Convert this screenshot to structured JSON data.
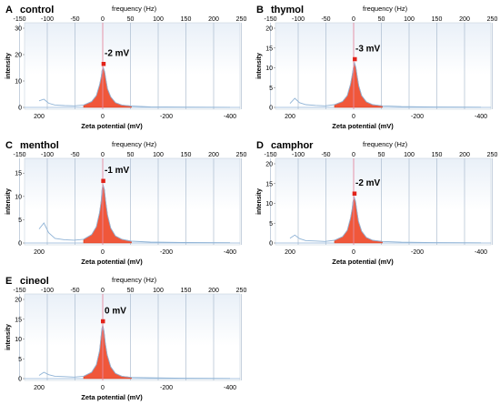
{
  "colors": {
    "peak_fill": "#f0573a",
    "peak_edge": "#d63a1d",
    "marker": "#e2231a",
    "zero_line": "#e58aa0",
    "grid": "#9fb3c8",
    "baseline": "#8fb3d6",
    "plot_bg_top": "#e9f0f8",
    "axis": "#7f7f7f",
    "text": "#000000"
  },
  "common": {
    "top_axis_title": "frequency (Hz)",
    "top_ticks": [
      "-150",
      "-100",
      "-50",
      "0",
      "50",
      "100",
      "150",
      "200",
      "250"
    ],
    "x_label": "Zeta potential (mV)",
    "x_ticks": [
      "200",
      "0",
      "-200",
      "-400"
    ],
    "y_label": "intensity"
  },
  "chart_data": [
    {
      "type": "area",
      "panel": "A",
      "title": "control",
      "annotation": "-2 mV",
      "peak_mV": -2,
      "y_ticks": [
        0,
        10,
        20,
        30
      ],
      "ylim": [
        0,
        30
      ],
      "xlim_mV": [
        250,
        -420
      ],
      "series": [
        {
          "x_mV": [
            200,
            185,
            170,
            150,
            120,
            90,
            60,
            35,
            20,
            10,
            5,
            2,
            -2,
            -6,
            -10,
            -15,
            -25,
            -40,
            -60,
            -90,
            -150,
            -250,
            -400
          ],
          "intensity": [
            2.5,
            3.1,
            1.6,
            0.9,
            0.7,
            0.6,
            0.9,
            2.2,
            4.5,
            8.5,
            11.5,
            14.0,
            15.0,
            13.5,
            10.5,
            7.0,
            4.0,
            1.8,
            0.9,
            0.5,
            0.2,
            0.1,
            0.05
          ]
        }
      ]
    },
    {
      "type": "area",
      "panel": "B",
      "title": "thymol",
      "annotation": "-3 mV",
      "peak_mV": -3,
      "y_ticks": [
        0,
        5,
        10,
        15,
        20
      ],
      "ylim": [
        0,
        20
      ],
      "xlim_mV": [
        250,
        -420
      ],
      "series": [
        {
          "x_mV": [
            200,
            185,
            170,
            150,
            120,
            90,
            60,
            35,
            20,
            10,
            5,
            1,
            -3,
            -7,
            -11,
            -16,
            -25,
            -40,
            -60,
            -90,
            -150,
            -250,
            -400
          ],
          "intensity": [
            1.0,
            2.3,
            1.2,
            0.7,
            0.5,
            0.4,
            0.7,
            1.5,
            3.0,
            5.8,
            8.0,
            10.0,
            11.2,
            10.0,
            8.0,
            5.5,
            3.0,
            1.4,
            0.7,
            0.4,
            0.2,
            0.1,
            0.05
          ]
        }
      ]
    },
    {
      "type": "area",
      "panel": "C",
      "title": "menthol",
      "annotation": "-1 mV",
      "peak_mV": -1,
      "y_ticks": [
        0,
        5,
        10,
        15
      ],
      "ylim": [
        0,
        17
      ],
      "xlim_mV": [
        250,
        -420
      ],
      "series": [
        {
          "x_mV": [
            200,
            185,
            170,
            150,
            120,
            90,
            60,
            35,
            20,
            10,
            5,
            2,
            -1,
            -5,
            -9,
            -15,
            -25,
            -40,
            -60,
            -90,
            -150,
            -250,
            -400
          ],
          "intensity": [
            3.0,
            4.3,
            2.2,
            1.0,
            0.7,
            0.6,
            0.8,
            1.8,
            3.5,
            6.5,
            9.0,
            11.5,
            12.5,
            11.5,
            9.0,
            6.0,
            3.2,
            1.5,
            0.8,
            0.4,
            0.2,
            0.1,
            0.05
          ]
        }
      ]
    },
    {
      "type": "area",
      "panel": "D",
      "title": "camphor",
      "annotation": "-2 mV",
      "peak_mV": -2,
      "y_ticks": [
        0,
        5,
        10,
        15,
        20
      ],
      "ylim": [
        0,
        20
      ],
      "xlim_mV": [
        250,
        -420
      ],
      "series": [
        {
          "x_mV": [
            200,
            185,
            170,
            150,
            120,
            90,
            60,
            35,
            20,
            10,
            5,
            2,
            -2,
            -6,
            -10,
            -15,
            -25,
            -40,
            -60,
            -90,
            -150,
            -250,
            -400
          ],
          "intensity": [
            1.2,
            2.0,
            1.1,
            0.6,
            0.5,
            0.4,
            0.7,
            1.6,
            3.2,
            6.2,
            8.5,
            10.5,
            11.5,
            10.5,
            8.2,
            5.5,
            3.0,
            1.4,
            0.7,
            0.4,
            0.2,
            0.1,
            0.05
          ]
        }
      ]
    },
    {
      "type": "area",
      "panel": "E",
      "title": "cineol",
      "annotation": "0 mV",
      "peak_mV": 0,
      "y_ticks": [
        0,
        5,
        10,
        15,
        20
      ],
      "ylim": [
        0,
        20
      ],
      "xlim_mV": [
        250,
        -420
      ],
      "series": [
        {
          "x_mV": [
            200,
            185,
            170,
            150,
            120,
            90,
            60,
            35,
            20,
            10,
            6,
            3,
            0,
            -4,
            -8,
            -14,
            -25,
            -40,
            -60,
            -90,
            -150,
            -250,
            -400
          ],
          "intensity": [
            0.8,
            1.6,
            1.0,
            0.6,
            0.5,
            0.4,
            0.6,
            1.6,
            3.5,
            7.0,
            10.0,
            12.5,
            13.5,
            12.0,
            9.0,
            6.0,
            3.0,
            1.3,
            0.6,
            0.3,
            0.2,
            0.1,
            0.05
          ]
        }
      ]
    }
  ]
}
